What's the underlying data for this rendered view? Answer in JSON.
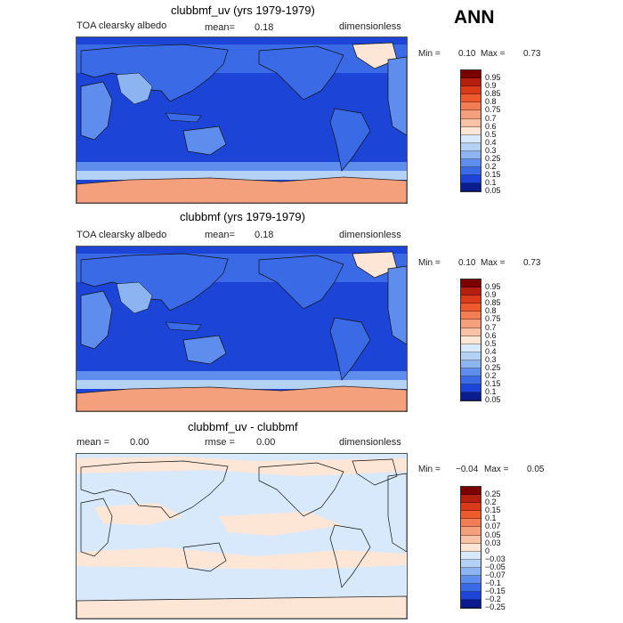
{
  "season": "ANN",
  "panels": [
    {
      "title": "clubbmf_uv (yrs 1979-1979)",
      "left_label": "TOA clearsky albedo",
      "mean_label": "mean=",
      "mean_value": "0.18",
      "right_label": "dimensionless",
      "min_label": "Min =",
      "min_value": "0.10",
      "max_label": "Max =",
      "max_value": "0.73",
      "colorbar": [
        "0.95",
        "0.9",
        "0.85",
        "0.8",
        "0.75",
        "0.7",
        "0.6",
        "0.5",
        "0.4",
        "0.3",
        "0.25",
        "0.2",
        "0.15",
        "0.1",
        "0.05"
      ]
    },
    {
      "title": "clubbmf (yrs 1979-1979)",
      "left_label": "TOA clearsky albedo",
      "mean_label": "mean=",
      "mean_value": "0.18",
      "right_label": "dimensionless",
      "min_label": "Min =",
      "min_value": "0.10",
      "max_label": "Max =",
      "max_value": "0.73",
      "colorbar": [
        "0.95",
        "0.9",
        "0.85",
        "0.8",
        "0.75",
        "0.7",
        "0.6",
        "0.5",
        "0.4",
        "0.3",
        "0.25",
        "0.2",
        "0.15",
        "0.1",
        "0.05"
      ]
    },
    {
      "title": "clubbmf_uv - clubbmf",
      "left_label": "mean =",
      "left_value": "0.00",
      "mid_label": "rmse =",
      "mid_value": "0.00",
      "right_label": "dimensionless",
      "min_label": "Min =",
      "min_value": "−0.04",
      "max_label": "Max =",
      "max_value": "0.05",
      "colorbar": [
        "0.25",
        "0.2",
        "0.15",
        "0.1",
        "0.07",
        "0.05",
        "0.03",
        "0",
        "−0.03",
        "−0.05",
        "−0.07",
        "−0.1",
        "−0.15",
        "−0.2",
        "−0.25"
      ]
    }
  ],
  "colors": {
    "scale": [
      "#7a0000",
      "#b51f0f",
      "#d83a1a",
      "#ed5a2e",
      "#f27e55",
      "#f5a07c",
      "#f8c2a6",
      "#fde6d6",
      "#d8e9fb",
      "#b4d1f6",
      "#8cb4f0",
      "#5e8ded",
      "#3a6ae6",
      "#1c45d8",
      "#0a1c8e"
    ],
    "ocean_abs": "#1c45d8",
    "ocean_diff": "#d8e9fb",
    "antarctica": "#f5a07c",
    "greenland": "#fde6d6",
    "diff_warm": "#fde6d6"
  }
}
